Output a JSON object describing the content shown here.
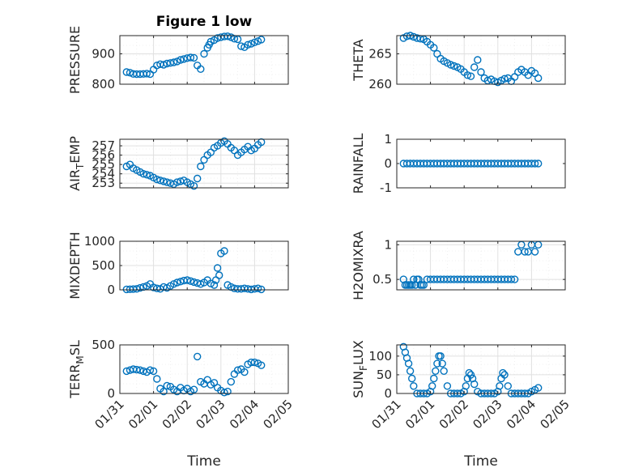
{
  "figure": {
    "title": "Figure 1 low",
    "xlabel": "Time",
    "marker_color": "#0072BD"
  },
  "chart_data": [
    {
      "type": "scatter",
      "ylabel": "PRESSURE",
      "title": "Figure 1 low",
      "ylim": [
        800,
        960
      ],
      "yticks": [
        800,
        900
      ],
      "ytick_labels": [
        "800",
        "900"
      ],
      "xlim": [
        0,
        5
      ],
      "grid": true,
      "x": [
        0.2,
        0.3,
        0.4,
        0.5,
        0.6,
        0.7,
        0.8,
        0.9,
        1.0,
        1.1,
        1.2,
        1.3,
        1.4,
        1.5,
        1.6,
        1.7,
        1.8,
        1.9,
        2.0,
        2.1,
        2.2,
        2.3,
        2.4,
        2.5,
        2.6,
        2.65,
        2.7,
        2.8,
        2.9,
        3.0,
        3.1,
        3.2,
        3.3,
        3.4,
        3.5,
        3.6,
        3.7,
        3.8,
        3.9,
        4.0,
        4.1,
        4.2
      ],
      "y": [
        840,
        838,
        834,
        833,
        833,
        834,
        835,
        833,
        848,
        862,
        866,
        864,
        868,
        870,
        872,
        875,
        880,
        883,
        886,
        888,
        887,
        862,
        850,
        900,
        920,
        930,
        940,
        945,
        952,
        955,
        957,
        958,
        955,
        950,
        948,
        925,
        922,
        930,
        933,
        938,
        942,
        947
      ]
    },
    {
      "type": "scatter",
      "ylabel": "AIR_TEMP",
      "ylim": [
        252.5,
        257.7
      ],
      "yticks": [
        253,
        254,
        255,
        256,
        257
      ],
      "ytick_labels": [
        "253",
        "254",
        "255",
        "256",
        "257"
      ],
      "xlim": [
        0,
        5
      ],
      "grid": true,
      "x": [
        0.2,
        0.3,
        0.4,
        0.5,
        0.6,
        0.7,
        0.8,
        0.9,
        1.0,
        1.1,
        1.2,
        1.3,
        1.4,
        1.5,
        1.6,
        1.7,
        1.8,
        1.9,
        2.0,
        2.1,
        2.2,
        2.3,
        2.4,
        2.5,
        2.6,
        2.7,
        2.8,
        2.9,
        3.0,
        3.1,
        3.2,
        3.3,
        3.4,
        3.5,
        3.6,
        3.7,
        3.8,
        3.9,
        4.0,
        4.1,
        4.2
      ],
      "y": [
        254.8,
        255.0,
        254.6,
        254.4,
        254.2,
        254.0,
        253.9,
        253.8,
        253.6,
        253.4,
        253.3,
        253.2,
        253.1,
        253.0,
        252.9,
        253.1,
        253.2,
        253.3,
        253.1,
        252.9,
        252.7,
        253.5,
        254.8,
        255.5,
        256.0,
        256.3,
        256.8,
        257.0,
        257.3,
        257.5,
        257.2,
        256.8,
        256.5,
        256.0,
        256.3,
        256.6,
        256.9,
        256.5,
        256.7,
        257.1,
        257.4
      ]
    },
    {
      "type": "scatter",
      "ylabel": "MIXDEPTH",
      "ylim": [
        0,
        1000
      ],
      "yticks": [
        0,
        500,
        1000
      ],
      "ytick_labels": [
        "0",
        "500",
        "1000"
      ],
      "xlim": [
        0,
        5
      ],
      "grid": true,
      "x": [
        0.2,
        0.3,
        0.4,
        0.5,
        0.6,
        0.7,
        0.8,
        0.9,
        1.0,
        1.1,
        1.2,
        1.3,
        1.4,
        1.5,
        1.6,
        1.7,
        1.8,
        1.9,
        2.0,
        2.1,
        2.2,
        2.3,
        2.4,
        2.5,
        2.6,
        2.7,
        2.8,
        2.85,
        2.9,
        2.95,
        3.0,
        3.1,
        3.2,
        3.3,
        3.4,
        3.5,
        3.6,
        3.7,
        3.8,
        3.9,
        4.0,
        4.1,
        4.2
      ],
      "y": [
        10,
        12,
        15,
        20,
        40,
        60,
        80,
        120,
        50,
        30,
        20,
        60,
        40,
        80,
        120,
        150,
        170,
        190,
        200,
        180,
        160,
        140,
        120,
        150,
        200,
        130,
        100,
        200,
        450,
        300,
        750,
        800,
        100,
        60,
        30,
        20,
        20,
        30,
        20,
        10,
        20,
        30,
        10
      ]
    },
    {
      "type": "scatter",
      "ylabel": "TERR_MSL",
      "ylim": [
        0,
        500
      ],
      "yticks": [
        0,
        500
      ],
      "ytick_labels": [
        "0",
        "500"
      ],
      "xlim": [
        0,
        5
      ],
      "grid": true,
      "x": [
        0.2,
        0.3,
        0.4,
        0.5,
        0.6,
        0.7,
        0.8,
        0.9,
        1.0,
        1.1,
        1.2,
        1.3,
        1.4,
        1.5,
        1.6,
        1.7,
        1.8,
        1.9,
        2.0,
        2.1,
        2.2,
        2.3,
        2.4,
        2.5,
        2.6,
        2.7,
        2.8,
        2.9,
        3.0,
        3.1,
        3.2,
        3.3,
        3.4,
        3.5,
        3.6,
        3.7,
        3.8,
        3.9,
        4.0,
        4.1,
        4.2
      ],
      "y": [
        230,
        240,
        250,
        245,
        240,
        230,
        220,
        240,
        230,
        150,
        50,
        20,
        80,
        70,
        40,
        20,
        60,
        30,
        50,
        20,
        40,
        380,
        120,
        100,
        140,
        90,
        110,
        60,
        30,
        10,
        20,
        120,
        200,
        240,
        250,
        220,
        300,
        320,
        320,
        310,
        290
      ]
    },
    {
      "type": "scatter",
      "ylabel": "THETA",
      "ylim": [
        260,
        268
      ],
      "yticks": [
        260,
        265
      ],
      "ytick_labels": [
        "260",
        "265"
      ],
      "xlim": [
        0,
        5
      ],
      "grid": true,
      "x": [
        0.2,
        0.3,
        0.4,
        0.5,
        0.6,
        0.7,
        0.8,
        0.9,
        1.0,
        1.1,
        1.2,
        1.3,
        1.4,
        1.5,
        1.6,
        1.7,
        1.8,
        1.9,
        2.0,
        2.1,
        2.2,
        2.3,
        2.4,
        2.5,
        2.6,
        2.7,
        2.8,
        2.9,
        3.0,
        3.1,
        3.2,
        3.3,
        3.4,
        3.5,
        3.6,
        3.7,
        3.8,
        3.9,
        4.0,
        4.1,
        4.2
      ],
      "y": [
        267.6,
        267.9,
        268.0,
        267.8,
        267.6,
        267.5,
        267.4,
        267.0,
        266.5,
        266.0,
        265.0,
        264.2,
        263.8,
        263.5,
        263.2,
        263.0,
        262.8,
        262.5,
        262.0,
        261.5,
        261.3,
        262.8,
        264.0,
        262.0,
        261.0,
        260.6,
        260.8,
        260.5,
        260.3,
        260.6,
        260.9,
        261.0,
        260.5,
        261.2,
        262.0,
        262.4,
        262.0,
        261.5,
        262.2,
        261.8,
        261.0
      ]
    },
    {
      "type": "scatter",
      "ylabel": "RAINFALL",
      "ylim": [
        -1,
        1
      ],
      "yticks": [
        -1,
        0,
        1
      ],
      "ytick_labels": [
        "-1",
        "0",
        "1"
      ],
      "xlim": [
        0,
        5
      ],
      "grid": false,
      "x": [
        0.2,
        0.3,
        0.4,
        0.5,
        0.6,
        0.7,
        0.8,
        0.9,
        1.0,
        1.1,
        1.2,
        1.3,
        1.4,
        1.5,
        1.6,
        1.7,
        1.8,
        1.9,
        2.0,
        2.1,
        2.2,
        2.3,
        2.4,
        2.5,
        2.6,
        2.7,
        2.8,
        2.9,
        3.0,
        3.1,
        3.2,
        3.3,
        3.4,
        3.5,
        3.6,
        3.7,
        3.8,
        3.9,
        4.0,
        4.1,
        4.2
      ],
      "y": [
        0,
        0,
        0,
        0,
        0,
        0,
        0,
        0,
        0,
        0,
        0,
        0,
        0,
        0,
        0,
        0,
        0,
        0,
        0,
        0,
        0,
        0,
        0,
        0,
        0,
        0,
        0,
        0,
        0,
        0,
        0,
        0,
        0,
        0,
        0,
        0,
        0,
        0,
        0,
        0,
        0
      ]
    },
    {
      "type": "scatter",
      "ylabel": "H2OMIXRA",
      "ylim": [
        0.35,
        1.05
      ],
      "yticks": [
        0.5,
        1
      ],
      "ytick_labels": [
        "0.5",
        "1"
      ],
      "xlim": [
        0,
        5
      ],
      "grid": true,
      "x": [
        0.2,
        0.25,
        0.3,
        0.35,
        0.4,
        0.45,
        0.5,
        0.55,
        0.6,
        0.65,
        0.7,
        0.75,
        0.8,
        0.9,
        1.0,
        1.1,
        1.2,
        1.3,
        1.4,
        1.5,
        1.6,
        1.7,
        1.8,
        1.9,
        2.0,
        2.1,
        2.2,
        2.3,
        2.4,
        2.5,
        2.6,
        2.7,
        2.8,
        2.9,
        3.0,
        3.1,
        3.2,
        3.3,
        3.4,
        3.5,
        3.6,
        3.7,
        3.8,
        3.9,
        4.0,
        4.1,
        4.2
      ],
      "y": [
        0.5,
        0.42,
        0.42,
        0.42,
        0.42,
        0.42,
        0.5,
        0.42,
        0.5,
        0.5,
        0.42,
        0.42,
        0.42,
        0.5,
        0.5,
        0.5,
        0.5,
        0.5,
        0.5,
        0.5,
        0.5,
        0.5,
        0.5,
        0.5,
        0.5,
        0.5,
        0.5,
        0.5,
        0.5,
        0.5,
        0.5,
        0.5,
        0.5,
        0.5,
        0.5,
        0.5,
        0.5,
        0.5,
        0.5,
        0.5,
        0.9,
        1.0,
        0.9,
        0.9,
        1.0,
        0.9,
        1.0
      ]
    },
    {
      "type": "scatter",
      "ylabel": "SUN_FLUX",
      "ylim": [
        0,
        130
      ],
      "yticks": [
        0,
        50,
        100
      ],
      "ytick_labels": [
        "0",
        "50",
        "100"
      ],
      "xlim": [
        0,
        5
      ],
      "grid": true,
      "x": [
        0.2,
        0.25,
        0.3,
        0.35,
        0.4,
        0.45,
        0.5,
        0.6,
        0.7,
        0.8,
        0.9,
        1.0,
        1.05,
        1.1,
        1.15,
        1.2,
        1.25,
        1.3,
        1.35,
        1.4,
        1.5,
        1.6,
        1.7,
        1.8,
        1.9,
        2.0,
        2.05,
        2.1,
        2.15,
        2.2,
        2.25,
        2.3,
        2.4,
        2.5,
        2.6,
        2.7,
        2.8,
        2.9,
        3.0,
        3.05,
        3.1,
        3.15,
        3.2,
        3.3,
        3.4,
        3.5,
        3.6,
        3.7,
        3.8,
        3.9,
        4.0,
        4.1,
        4.2
      ],
      "y": [
        125,
        110,
        95,
        80,
        60,
        40,
        20,
        0,
        0,
        0,
        0,
        5,
        20,
        40,
        60,
        80,
        100,
        100,
        80,
        60,
        20,
        0,
        0,
        0,
        0,
        5,
        20,
        40,
        55,
        50,
        40,
        25,
        5,
        0,
        0,
        0,
        0,
        0,
        5,
        20,
        40,
        55,
        50,
        20,
        0,
        0,
        0,
        0,
        0,
        0,
        5,
        10,
        15
      ]
    }
  ],
  "x_axis": {
    "ticks": [
      0,
      1,
      2,
      3,
      4,
      5
    ],
    "labels": [
      "01/31",
      "02/01",
      "02/02",
      "02/03",
      "02/04",
      "02/05"
    ]
  },
  "ylabel_parts": [
    {
      "main": "PRESSURE",
      "sub": "",
      "after": ""
    },
    {
      "main": "AIR",
      "sub": "T",
      "after": "EMP"
    },
    {
      "main": "MIXDEPTH",
      "sub": "",
      "after": ""
    },
    {
      "main": "TERR",
      "sub": "M",
      "after": "SL"
    },
    {
      "main": "THETA",
      "sub": "",
      "after": ""
    },
    {
      "main": "RAINFALL",
      "sub": "",
      "after": ""
    },
    {
      "main": "H2OMIXRA",
      "sub": "",
      "after": ""
    },
    {
      "main": "SUN",
      "sub": "F",
      "after": "LUX"
    }
  ]
}
